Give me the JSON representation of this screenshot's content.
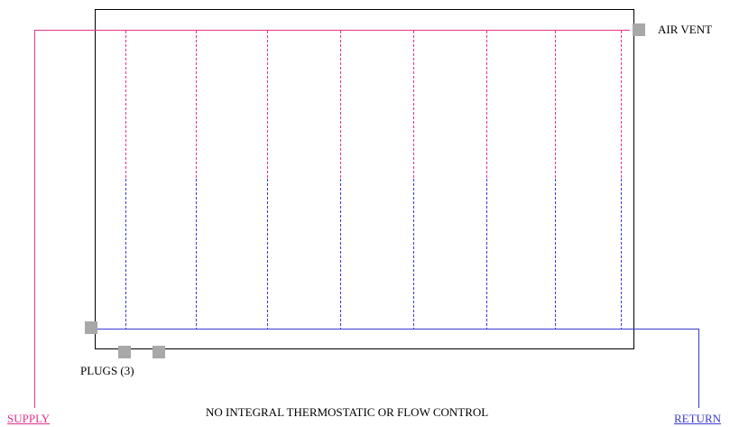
{
  "labels": {
    "air_vent": "AIR VENT",
    "plugs": "PLUGS (3)",
    "note": "NO INTEGRAL THERMOSTATIC OR FLOW CONTROL",
    "supply": "SUPPLY",
    "return": "RETURN"
  },
  "colors": {
    "supply_pipe": "#e0338c",
    "return_pipe": "#3a3ad0",
    "panel_outline": "#000000",
    "fitting": "#a8a8a8",
    "supply_link": "#e0338c",
    "return_link": "#3a3ad0"
  }
}
